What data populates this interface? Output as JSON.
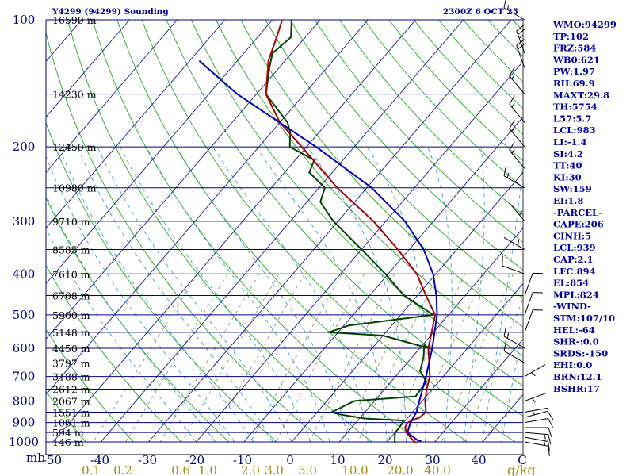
{
  "chart_data": {
    "type": "skew-t sounding",
    "title": "Y4299 (94299) Sounding",
    "valid_time": "2300Z  6 OCT 25",
    "pressure_unit": "mb",
    "mixing_ratio_unit": "g/kg",
    "pressure_levels": [
      100,
      200,
      300,
      400,
      500,
      600,
      700,
      800,
      900,
      1000
    ],
    "height_labels": [
      {
        "p": 100,
        "label": "16590 m"
      },
      {
        "p": 150,
        "label": "14230 m"
      },
      {
        "p": 200,
        "label": "12450 m"
      },
      {
        "p": 250,
        "label": "10980 m"
      },
      {
        "p": 300,
        "label": "9710 m"
      },
      {
        "p": 350,
        "label": "8585 m"
      },
      {
        "p": 400,
        "label": "7610 m"
      },
      {
        "p": 450,
        "label": "6708 m"
      },
      {
        "p": 500,
        "label": "5900 m"
      },
      {
        "p": 550,
        "label": "5148 m"
      },
      {
        "p": 600,
        "label": "4450 m"
      },
      {
        "p": 650,
        "label": "3797 m"
      },
      {
        "p": 700,
        "label": "3188 m"
      },
      {
        "p": 750,
        "label": "2612 m"
      },
      {
        "p": 800,
        "label": "2067 m"
      },
      {
        "p": 850,
        "label": "1551 m"
      },
      {
        "p": 900,
        "label": "1061 m"
      },
      {
        "p": 950,
        "label": "594 m"
      },
      {
        "p": 1000,
        "label": "146 m"
      }
    ],
    "temperature_ticks": [
      -50,
      -40,
      -30,
      -20,
      -10,
      0,
      10,
      20,
      30,
      40
    ],
    "temperature_tick_labels": [
      "-50",
      "-40",
      "-30",
      "-20",
      "-10",
      "0",
      "10",
      "20",
      "30",
      "40"
    ],
    "last_temperature_tick_label": "C",
    "mixing_ratio_ticks": [
      0.1,
      0.2,
      0.6,
      1.0,
      2.0,
      3.0,
      5.0,
      10.0,
      20.0,
      40.0
    ],
    "mixing_ratio_tick_labels": [
      "0.1",
      "0.2",
      "0.6",
      "1.0",
      "2.0",
      "3.0",
      "5.0",
      "10.0",
      "20.0",
      "40.0"
    ],
    "temperature_profile": [
      [
        1005,
        26.5
      ],
      [
        1000,
        25.8
      ],
      [
        975,
        24.0
      ],
      [
        950,
        22.4
      ],
      [
        925,
        21.2
      ],
      [
        900,
        20.8
      ],
      [
        875,
        22.4
      ],
      [
        850,
        22.8
      ],
      [
        800,
        20.6
      ],
      [
        750,
        18.8
      ],
      [
        700,
        17.2
      ],
      [
        650,
        14.6
      ],
      [
        600,
        11.8
      ],
      [
        550,
        9.6
      ],
      [
        500,
        7.2
      ],
      [
        450,
        1.8
      ],
      [
        400,
        -4.0
      ],
      [
        350,
        -12.4
      ],
      [
        300,
        -22.6
      ],
      [
        250,
        -36.2
      ],
      [
        200,
        -51.0
      ],
      [
        175,
        -60.0
      ],
      [
        150,
        -68.0
      ],
      [
        125,
        -73.5
      ],
      [
        110,
        -76.0
      ],
      [
        100,
        -78.0
      ]
    ],
    "dewpoint_profile": [
      [
        1005,
        22.0
      ],
      [
        1000,
        21.6
      ],
      [
        975,
        20.8
      ],
      [
        950,
        20.0
      ],
      [
        925,
        20.0
      ],
      [
        890,
        19.6
      ],
      [
        880,
        11.0
      ],
      [
        860,
        5.0
      ],
      [
        850,
        3.0
      ],
      [
        800,
        5.8
      ],
      [
        780,
        17.8
      ],
      [
        720,
        17.4
      ],
      [
        680,
        14.2
      ],
      [
        630,
        12.4
      ],
      [
        590,
        10.4
      ],
      [
        600,
        12.0
      ],
      [
        560,
        0.0
      ],
      [
        550,
        -12.0
      ],
      [
        530,
        -9.0
      ],
      [
        500,
        6.8
      ],
      [
        450,
        -2.8
      ],
      [
        400,
        -10.6
      ],
      [
        350,
        -20.0
      ],
      [
        300,
        -31.0
      ],
      [
        270,
        -37.2
      ],
      [
        250,
        -38.8
      ],
      [
        230,
        -44.8
      ],
      [
        215,
        -46.0
      ],
      [
        200,
        -53.5
      ],
      [
        185,
        -56.0
      ],
      [
        175,
        -58.4
      ],
      [
        150,
        -68.0
      ],
      [
        130,
        -72.0
      ],
      [
        120,
        -74.0
      ],
      [
        110,
        -73.0
      ],
      [
        100,
        -76.0
      ]
    ],
    "parcel_profile": [
      [
        995,
        27.0
      ],
      [
        990,
        26.0
      ],
      [
        950,
        22.6
      ],
      [
        900,
        21.4
      ],
      [
        850,
        20.8
      ],
      [
        800,
        19.4
      ],
      [
        700,
        16.4
      ],
      [
        600,
        12.6
      ],
      [
        500,
        7.6
      ],
      [
        450,
        4.0
      ],
      [
        400,
        -0.6
      ],
      [
        350,
        -7.0
      ],
      [
        300,
        -16.0
      ],
      [
        250,
        -29.0
      ],
      [
        200,
        -48.0
      ],
      [
        150,
        -74.0
      ],
      [
        125,
        -88.0
      ]
    ],
    "wind_barbs_knots": [
      {
        "p": 1000,
        "dir": 100,
        "spd": 10
      },
      {
        "p": 975,
        "dir": 100,
        "spd": 15
      },
      {
        "p": 950,
        "dir": 95,
        "spd": 15
      },
      {
        "p": 925,
        "dir": 90,
        "spd": 10
      },
      {
        "p": 900,
        "dir": 80,
        "spd": 10
      },
      {
        "p": 875,
        "dir": 75,
        "spd": 10
      },
      {
        "p": 850,
        "dir": 80,
        "spd": 5
      },
      {
        "p": 800,
        "dir": 70,
        "spd": 5
      },
      {
        "p": 700,
        "dir": 60,
        "spd": 5
      },
      {
        "p": 650,
        "dir": 300,
        "spd": 10
      },
      {
        "p": 600,
        "dir": 300,
        "spd": 15
      },
      {
        "p": 550,
        "dir": 20,
        "spd": 10
      },
      {
        "p": 500,
        "dir": 20,
        "spd": 10
      },
      {
        "p": 450,
        "dir": 20,
        "spd": 10
      },
      {
        "p": 400,
        "dir": 290,
        "spd": 10
      },
      {
        "p": 350,
        "dir": 300,
        "spd": 5
      },
      {
        "p": 300,
        "dir": 320,
        "spd": 5
      },
      {
        "p": 250,
        "dir": 300,
        "spd": 15
      },
      {
        "p": 225,
        "dir": 320,
        "spd": 15
      },
      {
        "p": 200,
        "dir": 320,
        "spd": 15
      },
      {
        "p": 175,
        "dir": 320,
        "spd": 15
      },
      {
        "p": 150,
        "dir": 320,
        "spd": 15
      },
      {
        "p": 130,
        "dir": 340,
        "spd": 20
      },
      {
        "p": 120,
        "dir": 340,
        "spd": 25
      },
      {
        "p": 100,
        "dir": 300,
        "spd": 15
      }
    ],
    "indices": [
      "WMO:94299",
      "TP:102",
      "FRZ:584",
      "WB0:621",
      "PW:1.97",
      "RH:69.9",
      "MAXT:29.8",
      "TH:5754",
      "L57:5.7",
      "LCL:983",
      "LI:-1.4",
      "SI:4.2",
      "TT:40",
      "KI:30",
      "SW:159",
      "EI:1.8",
      "-PARCEL-",
      "CAPE:206",
      "CINH:5",
      "LCL:939",
      "CAP:2.1",
      "LFC:894",
      "EL:854",
      "MPL:824",
      "-WIND-",
      "STM:107/10",
      "HEL:-64",
      "SHR-:0.0",
      "SRDS:-150",
      "EHI:0.0",
      "BRN:12.1",
      "BSHR:17"
    ],
    "colors": {
      "background": "#ffffff",
      "isobars": "#00008b",
      "isotherms": "#1a1a8c",
      "dry_adiabats": "#22aa22",
      "moist_adiabats": "#3aa0d0",
      "mixing_ratio": "#8a8a5a",
      "temperature": "#b00000",
      "dewpoint": "#004400",
      "parcel": "#0000cc",
      "text_blue": "#0000aa",
      "text_dark": "#00008b",
      "mixing_ratio_labels": "#a09000",
      "wind_barbs": "#000000"
    }
  }
}
